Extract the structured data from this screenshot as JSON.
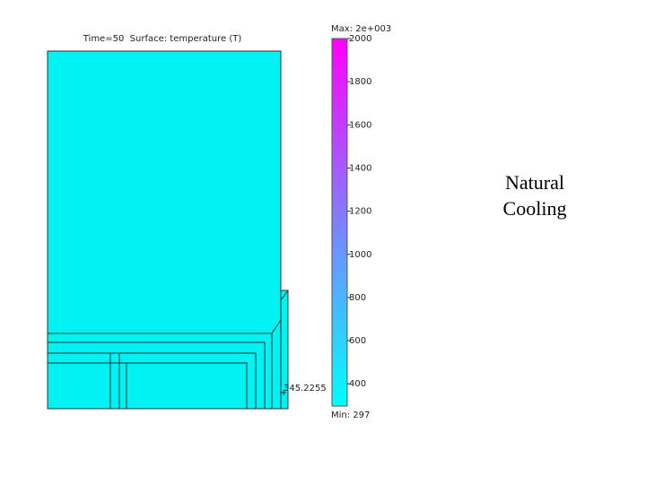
{
  "plot": {
    "title": "Time=50  Surface: temperature (T)",
    "probe_value": 345.2255
  },
  "colorbar": {
    "max_label": "Max: 2e+003",
    "min_label": "Min: 297",
    "lim": [
      297,
      2000
    ],
    "ticks": [
      400,
      600,
      800,
      1000,
      1200,
      1400,
      1600,
      1800,
      2000
    ],
    "colors": [
      "#00ffff",
      "#ff00ff"
    ]
  },
  "caption": [
    "Natural",
    "Cooling"
  ]
}
